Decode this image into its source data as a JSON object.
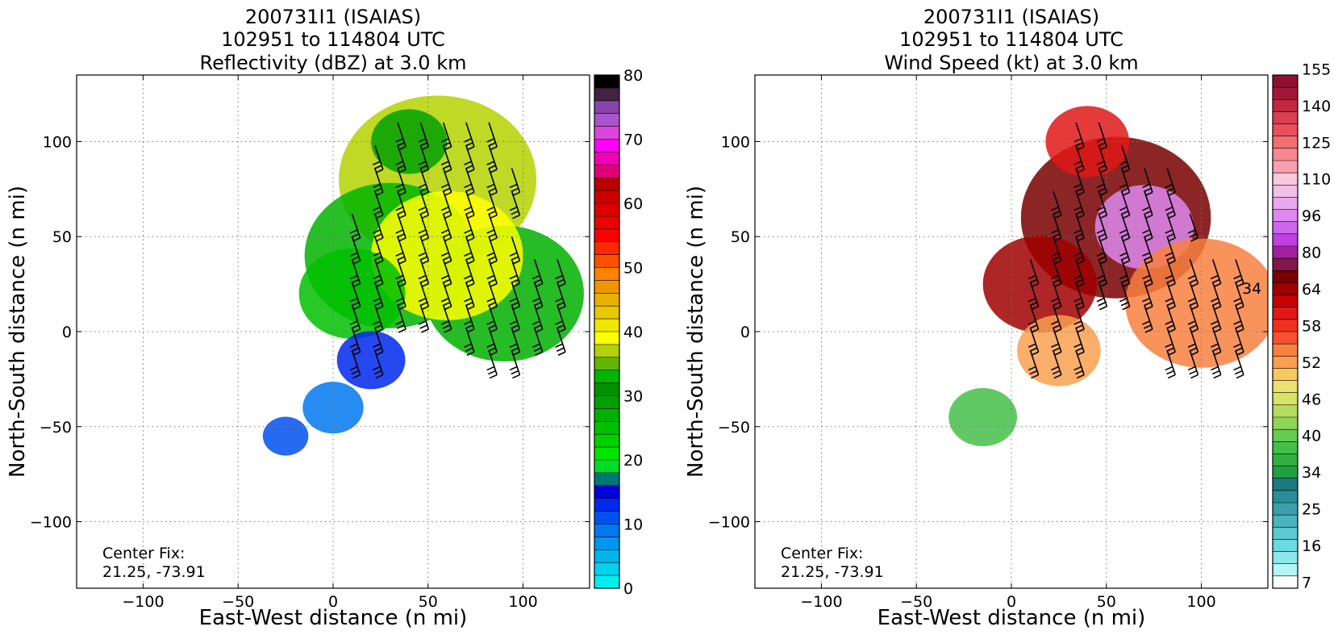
{
  "chart_data": [
    {
      "type": "heatmap",
      "title_lines": [
        "200731I1 (ISAIAS)",
        "102951 to 114804 UTC",
        "Reflectivity (dBZ) at 3.0 km"
      ],
      "xlabel": "East-West distance (n mi)",
      "ylabel": "North-South distance (n mi)",
      "xlim": [
        -135,
        135
      ],
      "ylim": [
        -135,
        135
      ],
      "xticks": [
        -100,
        -50,
        0,
        50,
        100
      ],
      "yticks": [
        -100,
        -50,
        0,
        50,
        100
      ],
      "grid": true,
      "annotation_lines": [
        "Center Fix:",
        "21.25, -73.91"
      ],
      "colorbar": {
        "label_values": [
          0,
          10,
          20,
          30,
          40,
          50,
          60,
          70,
          80
        ],
        "range": [
          0,
          80
        ],
        "colors": [
          "#00eeee",
          "#00d2ee",
          "#00b4ee",
          "#0096ee",
          "#0078ee",
          "#0050ee",
          "#0028ee",
          "#0000dd",
          "#007878",
          "#00dd28",
          "#00e600",
          "#00d200",
          "#00c000",
          "#00b000",
          "#00a000",
          "#009000",
          "#00b400",
          "#64b400",
          "#b4d200",
          "#ffff00",
          "#f0e600",
          "#e8c800",
          "#e8b000",
          "#f09600",
          "#ff8200",
          "#ff5000",
          "#ff2800",
          "#ff0000",
          "#ec0000",
          "#dc0000",
          "#cc0000",
          "#bb0000",
          "#e00078",
          "#f000b4",
          "#ff00ff",
          "#dd44dd",
          "#aa55cc",
          "#8844aa",
          "#442244",
          "#000000"
        ]
      },
      "field": [
        {
          "x": 55,
          "y": 80,
          "r": 52,
          "v": 36
        },
        {
          "x": 30,
          "y": 40,
          "r": 45,
          "v": 33
        },
        {
          "x": 90,
          "y": 20,
          "r": 42,
          "v": 26
        },
        {
          "x": 60,
          "y": 40,
          "r": 40,
          "v": 38
        },
        {
          "x": 10,
          "y": 20,
          "r": 28,
          "v": 24
        },
        {
          "x": 40,
          "y": 100,
          "r": 20,
          "v": 28
        },
        {
          "x": 20,
          "y": -15,
          "r": 18,
          "v": 12
        },
        {
          "x": 0,
          "y": -40,
          "r": 16,
          "v": 9
        },
        {
          "x": -25,
          "y": -55,
          "r": 12,
          "v": 11
        }
      ]
    },
    {
      "type": "heatmap",
      "title_lines": [
        "200731I1 (ISAIAS)",
        "102951 to 114804 UTC",
        "Wind Speed (kt) at 3.0 km"
      ],
      "xlabel": "East-West distance (n mi)",
      "ylabel": "North-South distance (n mi)",
      "xlim": [
        -135,
        135
      ],
      "ylim": [
        -135,
        135
      ],
      "xticks": [
        -100,
        -50,
        0,
        50,
        100
      ],
      "yticks": [
        -100,
        -50,
        0,
        50,
        100
      ],
      "grid": true,
      "annotation_lines": [
        "Center Fix:",
        "21.25, -73.91"
      ],
      "contour_label": "34",
      "colorbar": {
        "tick_labels": [
          "7",
          "16",
          "25",
          "34",
          "40",
          "46",
          "52",
          "58",
          "64",
          "80",
          "96",
          "110",
          "125",
          "140",
          "155"
        ],
        "colors": [
          "#ffffff",
          "#b4f5f5",
          "#8ee8ea",
          "#6cd8e0",
          "#5cc8d0",
          "#4ab4be",
          "#3aa0aa",
          "#2a8c96",
          "#1a7a80",
          "#22a040",
          "#30b040",
          "#44c048",
          "#64cc50",
          "#90d458",
          "#b4dc60",
          "#d8e468",
          "#ece070",
          "#f8c860",
          "#f8a050",
          "#f88040",
          "#f85030",
          "#f03020",
          "#e01818",
          "#c80000",
          "#a00000",
          "#780000",
          "#801848",
          "#a020a0",
          "#c040e0",
          "#cc66ee",
          "#dd88ee",
          "#e8a8ee",
          "#f0c0e8",
          "#f8c8dc",
          "#f8a0b0",
          "#f88890",
          "#f07070",
          "#e85060",
          "#d84050",
          "#c02840",
          "#a01838",
          "#901030"
        ]
      },
      "field": [
        {
          "x": 55,
          "y": 60,
          "r": 50,
          "v": 48
        },
        {
          "x": 70,
          "y": 55,
          "r": 26,
          "v": 58
        },
        {
          "x": 15,
          "y": 25,
          "r": 30,
          "v": 47
        },
        {
          "x": 100,
          "y": 15,
          "r": 40,
          "v": 38
        },
        {
          "x": 40,
          "y": 100,
          "r": 22,
          "v": 42
        },
        {
          "x": 25,
          "y": -10,
          "r": 22,
          "v": 36
        },
        {
          "x": -15,
          "y": -45,
          "r": 18,
          "v": 22
        }
      ]
    }
  ]
}
